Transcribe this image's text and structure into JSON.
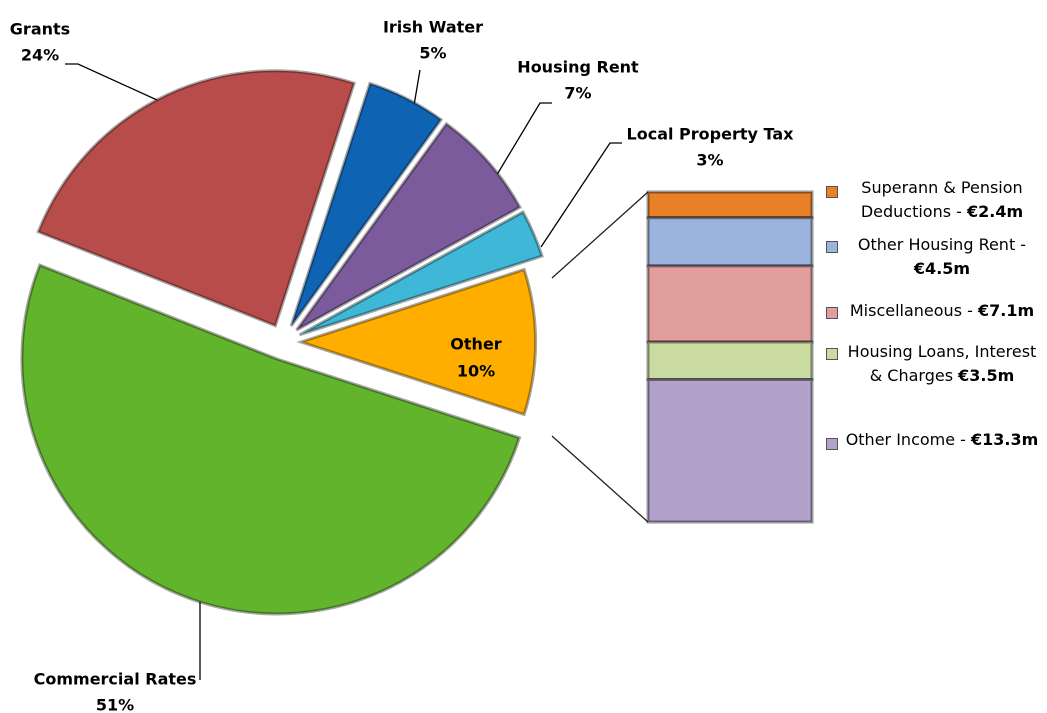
{
  "chart_data": {
    "type": "pie-of-bar",
    "categories": [
      "Other",
      "Commercial Rates",
      "Grants",
      "Irish Water",
      "Housing Rent",
      "Local Property Tax"
    ],
    "values": [
      10,
      51,
      24,
      5,
      7,
      3
    ],
    "value_labels": [
      "10%",
      "51%",
      "24%",
      "5%",
      "7%",
      "3%"
    ],
    "colors": [
      "#ffae00",
      "#62b42c",
      "#b84c4b",
      "#0f63b3",
      "#7b5b9c",
      "#3fb8d8"
    ],
    "bar": {
      "categories": [
        "Superann & Pension Deductions -",
        "Other Housing Rent -",
        "Miscellaneous -",
        "Housing Loans, Interest & Charges",
        "Other Income -"
      ],
      "values": [
        2.4,
        4.5,
        7.1,
        3.5,
        13.3
      ],
      "value_labels": [
        "€2.4m",
        "€4.5m",
        "€7.1m",
        "€3.5m",
        "€13.3m"
      ],
      "colors": [
        "#e8802a",
        "#9bb3dd",
        "#e29d9d",
        "#c9dba0",
        "#b2a1ca"
      ]
    }
  }
}
